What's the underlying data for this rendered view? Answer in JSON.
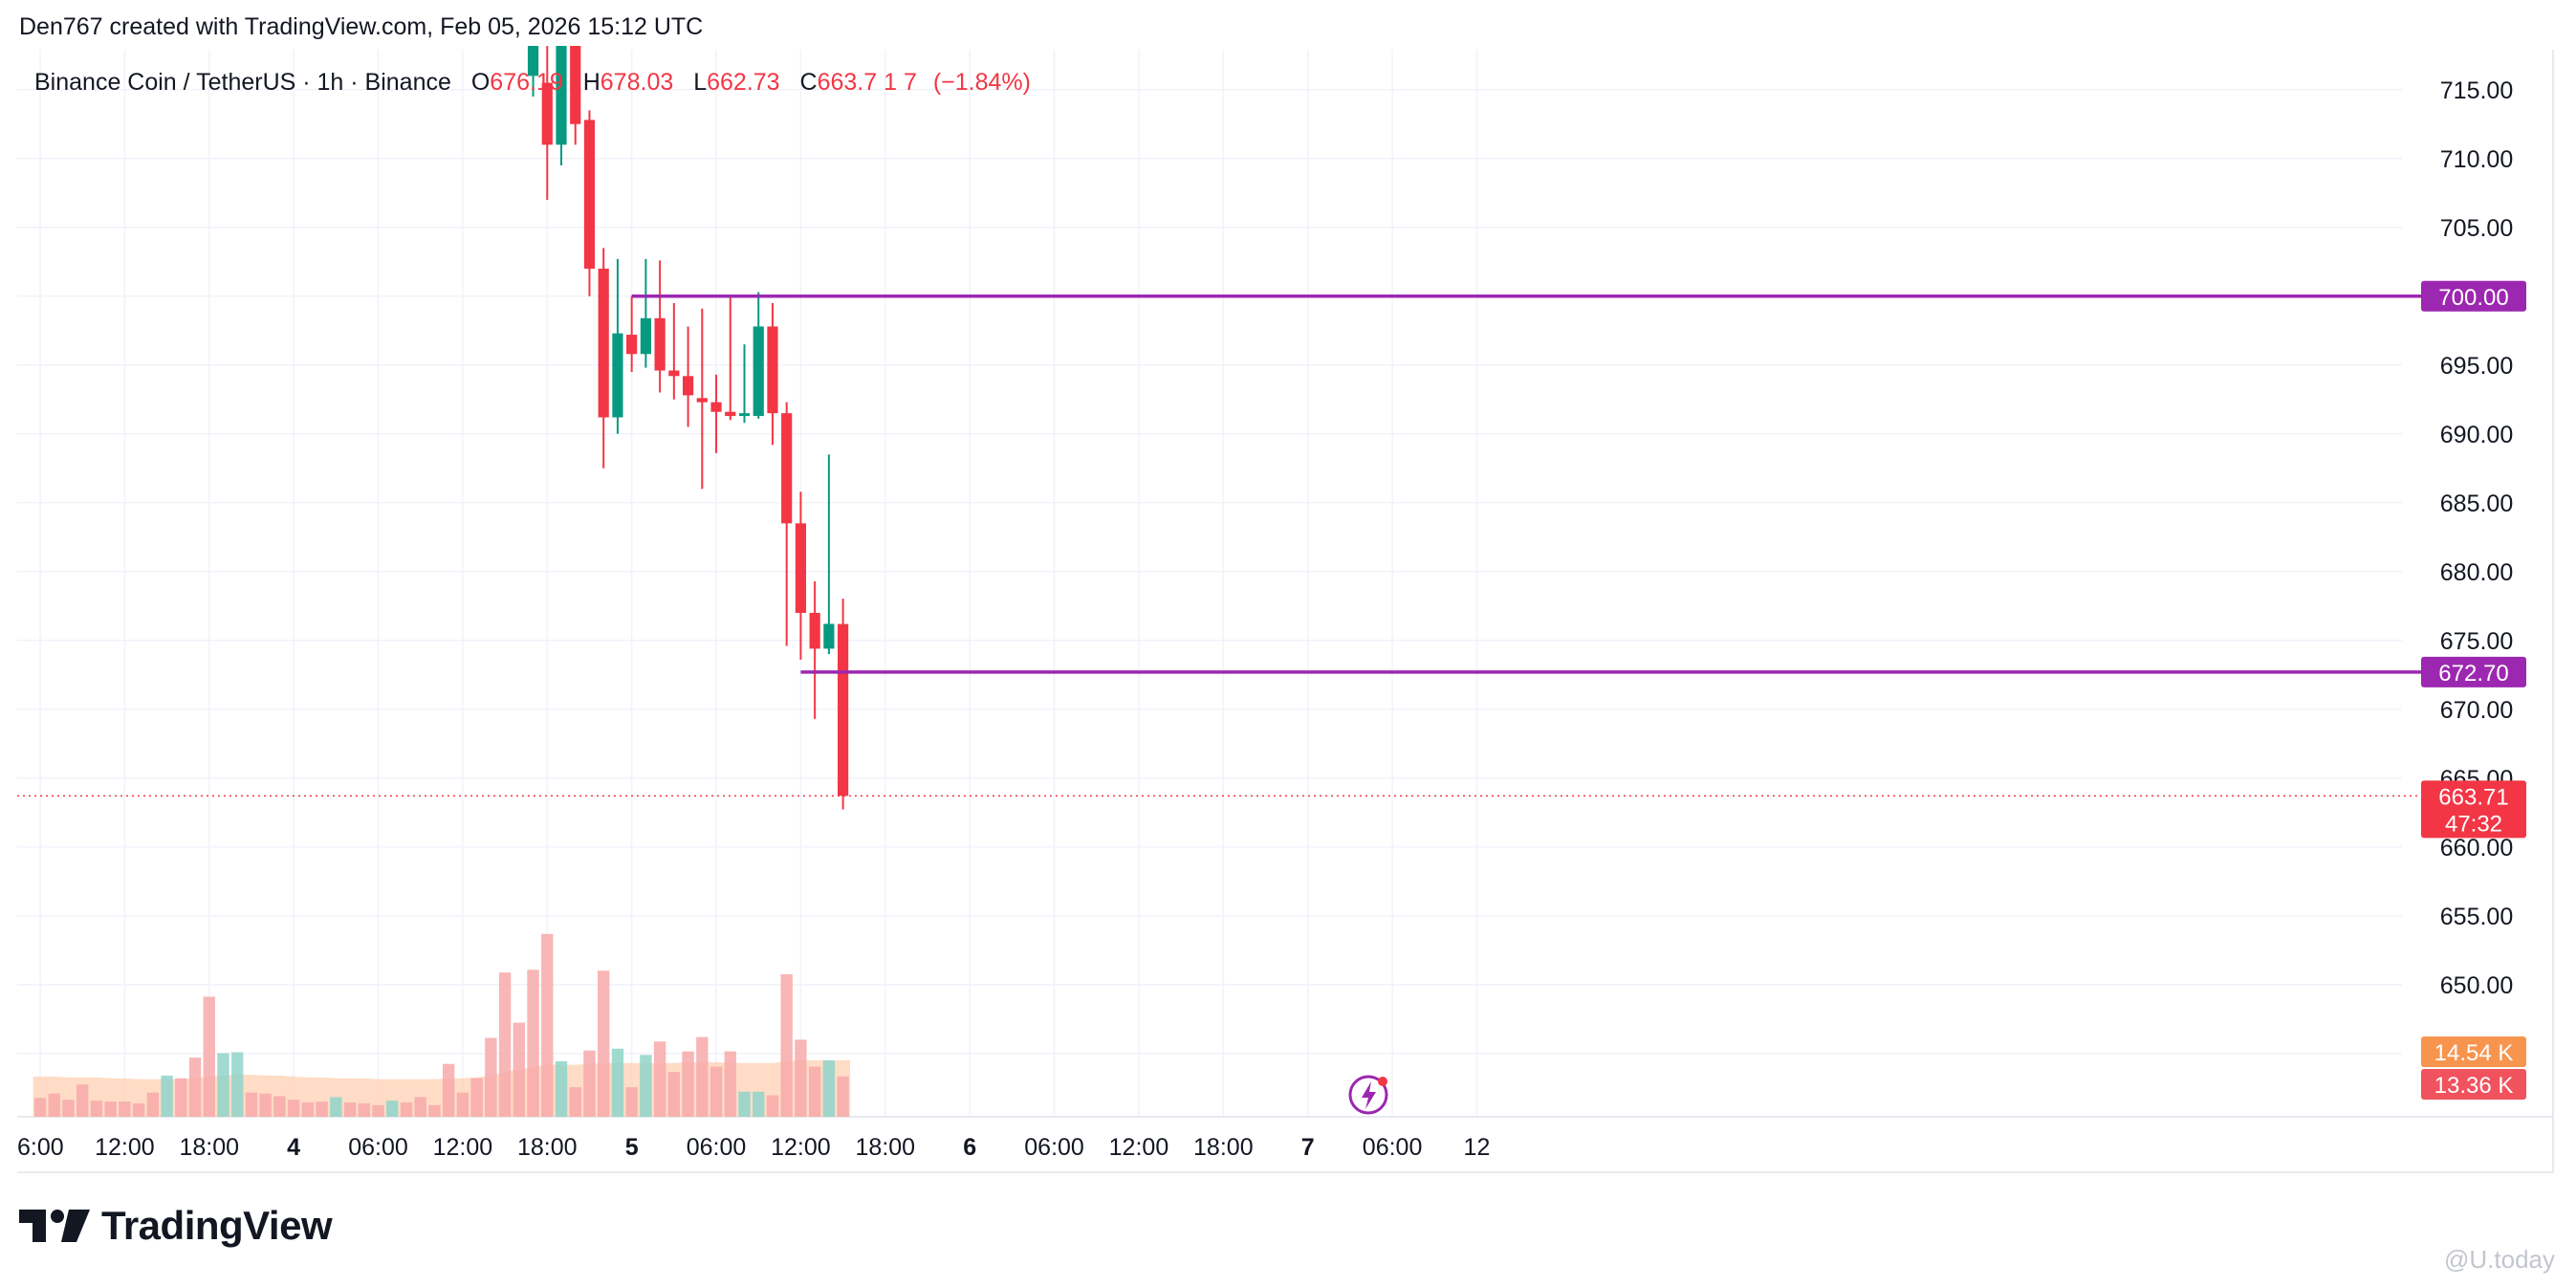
{
  "caption": "Den767 created with TradingView.com, Feb 05, 2026 15:12 UTC",
  "brand": {
    "name": "TradingView",
    "icon": "tradingview-logo-icon"
  },
  "watermark": "@U.today",
  "colors": {
    "up": "#089981",
    "down": "#f23645",
    "level": "#9c27b0",
    "vol_up": "#8fd3c9",
    "vol_down": "#f7a9a9",
    "vol_ma_fill": "#ffd0b3",
    "vol_ma_label": "#f7954f",
    "grid": "#f0f3fa"
  },
  "chart_data": {
    "type": "candlestick",
    "title": "Binance Coin / TetherUS · 1h · Binance",
    "ohlc_header": {
      "O": "676.19",
      "H": "678.03",
      "L": "662.73",
      "C": "663.7",
      "change": "(−1.84%)"
    },
    "header_clipped": {
      "change_pre": "1",
      "change_mid": "7"
    },
    "y_axis": {
      "range": [
        640.4,
        717.9
      ],
      "ticks": [
        "715.00",
        "710.00",
        "705.00",
        "700.00",
        "695.00",
        "690.00",
        "685.00",
        "680.00",
        "675.00",
        "670.00",
        "665.00",
        "660.00",
        "655.00",
        "650.00",
        "645.00"
      ]
    },
    "x_axis": {
      "ticks": [
        {
          "label": "6:00",
          "t": 0,
          "bold": false
        },
        {
          "label": "12:00",
          "t": 6,
          "bold": false
        },
        {
          "label": "18:00",
          "t": 12,
          "bold": false
        },
        {
          "label": "4",
          "t": 18,
          "bold": true
        },
        {
          "label": "06:00",
          "t": 24,
          "bold": false
        },
        {
          "label": "12:00",
          "t": 30,
          "bold": false
        },
        {
          "label": "18:00",
          "t": 36,
          "bold": false
        },
        {
          "label": "5",
          "t": 42,
          "bold": true
        },
        {
          "label": "06:00",
          "t": 48,
          "bold": false
        },
        {
          "label": "12:00",
          "t": 54,
          "bold": false
        },
        {
          "label": "18:00",
          "t": 60,
          "bold": false
        },
        {
          "label": "6",
          "t": 66,
          "bold": true
        },
        {
          "label": "06:00",
          "t": 72,
          "bold": false
        },
        {
          "label": "12:00",
          "t": 78,
          "bold": false
        },
        {
          "label": "18:00",
          "t": 84,
          "bold": false
        },
        {
          "label": "7",
          "t": 90,
          "bold": true
        },
        {
          "label": "06:00",
          "t": 96,
          "bold": false
        },
        {
          "label": "12",
          "t": 102,
          "bold": false
        }
      ]
    },
    "candles": [
      {
        "t": 35,
        "o": 716.0,
        "h": 720.0,
        "l": 714.5,
        "c": 720.0
      },
      {
        "t": 36,
        "o": 715.5,
        "h": 720.0,
        "l": 707.0,
        "c": 711.0
      },
      {
        "t": 37,
        "o": 711.0,
        "h": 720.0,
        "l": 709.5,
        "c": 720.0
      },
      {
        "t": 38,
        "o": 720.0,
        "h": 720.0,
        "l": 711.0,
        "c": 712.5
      },
      {
        "t": 39,
        "o": 712.8,
        "h": 713.5,
        "l": 700.0,
        "c": 702.0
      },
      {
        "t": 40,
        "o": 702.0,
        "h": 703.5,
        "l": 687.5,
        "c": 691.2
      },
      {
        "t": 41,
        "o": 691.2,
        "h": 702.7,
        "l": 690.0,
        "c": 697.3
      },
      {
        "t": 42,
        "o": 697.2,
        "h": 700.0,
        "l": 694.5,
        "c": 695.8
      },
      {
        "t": 43,
        "o": 695.8,
        "h": 702.7,
        "l": 694.8,
        "c": 698.4
      },
      {
        "t": 44,
        "o": 698.4,
        "h": 702.6,
        "l": 693.0,
        "c": 694.6
      },
      {
        "t": 45,
        "o": 694.6,
        "h": 699.5,
        "l": 692.5,
        "c": 694.2
      },
      {
        "t": 46,
        "o": 694.2,
        "h": 697.8,
        "l": 690.5,
        "c": 692.8
      },
      {
        "t": 47,
        "o": 692.6,
        "h": 699.1,
        "l": 686.0,
        "c": 692.3
      },
      {
        "t": 48,
        "o": 692.3,
        "h": 694.3,
        "l": 688.6,
        "c": 691.6
      },
      {
        "t": 49,
        "o": 691.6,
        "h": 700.0,
        "l": 691.0,
        "c": 691.3
      },
      {
        "t": 50,
        "o": 691.3,
        "h": 696.5,
        "l": 690.8,
        "c": 691.5
      },
      {
        "t": 51,
        "o": 691.3,
        "h": 700.3,
        "l": 691.1,
        "c": 697.8
      },
      {
        "t": 52,
        "o": 697.8,
        "h": 699.5,
        "l": 689.2,
        "c": 691.5
      },
      {
        "t": 53,
        "o": 691.5,
        "h": 692.3,
        "l": 674.6,
        "c": 683.5
      },
      {
        "t": 54,
        "o": 683.5,
        "h": 685.8,
        "l": 673.6,
        "c": 677.0
      },
      {
        "t": 55,
        "o": 677.0,
        "h": 679.3,
        "l": 669.3,
        "c": 674.4
      },
      {
        "t": 56,
        "o": 674.4,
        "h": 688.5,
        "l": 674.0,
        "c": 676.2
      },
      {
        "t": 57,
        "o": 676.19,
        "h": 678.03,
        "l": 662.73,
        "c": 663.71
      }
    ],
    "volume": [
      {
        "t": 0,
        "v": 2.1,
        "up": false
      },
      {
        "t": 1,
        "v": 2.6,
        "up": false
      },
      {
        "t": 2,
        "v": 1.9,
        "up": false
      },
      {
        "t": 3,
        "v": 3.6,
        "up": false
      },
      {
        "t": 4,
        "v": 1.8,
        "up": false
      },
      {
        "t": 5,
        "v": 1.7,
        "up": false
      },
      {
        "t": 6,
        "v": 1.7,
        "up": false
      },
      {
        "t": 7,
        "v": 1.5,
        "up": false
      },
      {
        "t": 8,
        "v": 2.7,
        "up": false
      },
      {
        "t": 9,
        "v": 4.6,
        "up": true
      },
      {
        "t": 10,
        "v": 4.3,
        "up": false
      },
      {
        "t": 11,
        "v": 6.6,
        "up": false
      },
      {
        "t": 12,
        "v": 13.4,
        "up": false
      },
      {
        "t": 13,
        "v": 7.1,
        "up": true
      },
      {
        "t": 14,
        "v": 7.2,
        "up": true
      },
      {
        "t": 15,
        "v": 2.7,
        "up": false
      },
      {
        "t": 16,
        "v": 2.6,
        "up": false
      },
      {
        "t": 17,
        "v": 2.3,
        "up": false
      },
      {
        "t": 18,
        "v": 1.9,
        "up": false
      },
      {
        "t": 19,
        "v": 1.6,
        "up": false
      },
      {
        "t": 20,
        "v": 1.7,
        "up": false
      },
      {
        "t": 21,
        "v": 2.2,
        "up": true
      },
      {
        "t": 22,
        "v": 1.6,
        "up": false
      },
      {
        "t": 23,
        "v": 1.5,
        "up": false
      },
      {
        "t": 24,
        "v": 1.3,
        "up": false
      },
      {
        "t": 25,
        "v": 1.8,
        "up": true
      },
      {
        "t": 26,
        "v": 1.6,
        "up": false
      },
      {
        "t": 27,
        "v": 2.2,
        "up": false
      },
      {
        "t": 28,
        "v": 1.3,
        "up": false
      },
      {
        "t": 29,
        "v": 5.9,
        "up": false
      },
      {
        "t": 30,
        "v": 2.7,
        "up": false
      },
      {
        "t": 31,
        "v": 4.3,
        "up": false
      },
      {
        "t": 32,
        "v": 8.8,
        "up": false
      },
      {
        "t": 33,
        "v": 16.1,
        "up": false
      },
      {
        "t": 34,
        "v": 10.5,
        "up": false
      },
      {
        "t": 35,
        "v": 16.4,
        "up": false
      },
      {
        "t": 36,
        "v": 20.4,
        "up": false
      },
      {
        "t": 37,
        "v": 6.2,
        "up": true
      },
      {
        "t": 38,
        "v": 3.3,
        "up": false
      },
      {
        "t": 39,
        "v": 7.4,
        "up": false
      },
      {
        "t": 40,
        "v": 16.3,
        "up": false
      },
      {
        "t": 41,
        "v": 7.6,
        "up": true
      },
      {
        "t": 42,
        "v": 3.3,
        "up": false
      },
      {
        "t": 43,
        "v": 6.9,
        "up": true
      },
      {
        "t": 44,
        "v": 8.4,
        "up": false
      },
      {
        "t": 45,
        "v": 5.0,
        "up": false
      },
      {
        "t": 46,
        "v": 7.3,
        "up": false
      },
      {
        "t": 47,
        "v": 8.9,
        "up": false
      },
      {
        "t": 48,
        "v": 5.6,
        "up": false
      },
      {
        "t": 49,
        "v": 7.3,
        "up": false
      },
      {
        "t": 50,
        "v": 2.8,
        "up": true
      },
      {
        "t": 51,
        "v": 2.8,
        "up": true
      },
      {
        "t": 52,
        "v": 2.4,
        "up": false
      },
      {
        "t": 53,
        "v": 15.9,
        "up": false
      },
      {
        "t": 54,
        "v": 8.6,
        "up": false
      },
      {
        "t": 55,
        "v": 5.6,
        "up": false
      },
      {
        "t": 56,
        "v": 6.3,
        "up": true
      },
      {
        "t": 57,
        "v": 4.5,
        "up": false
      }
    ],
    "volume_ma": [
      4.5,
      4.5,
      4.4,
      4.4,
      4.4,
      4.3,
      4.3,
      4.2,
      4.2,
      4.2,
      4.2,
      4.3,
      4.5,
      4.6,
      4.7,
      4.7,
      4.6,
      4.6,
      4.5,
      4.4,
      4.4,
      4.3,
      4.3,
      4.3,
      4.2,
      4.2,
      4.2,
      4.2,
      4.2,
      4.3,
      4.3,
      4.4,
      4.6,
      5.0,
      5.3,
      5.5,
      5.8,
      5.8,
      5.8,
      5.9,
      6.0,
      6.0,
      6.0,
      6.0,
      6.0,
      6.0,
      6.1,
      6.1,
      6.1,
      6.0,
      6.0,
      6.0,
      6.0,
      6.2,
      6.3,
      6.3,
      6.3,
      6.3
    ],
    "levels": [
      {
        "price": 700.0,
        "label": "700.00",
        "from_t": 42
      },
      {
        "price": 672.7,
        "label": "672.70",
        "from_t": 54
      }
    ],
    "last_price": {
      "price": 663.71,
      "label": "663.71",
      "countdown": "47:32"
    },
    "volume_labels": {
      "ma": "14.54 K",
      "last": "13.36 K"
    },
    "volume_max": 32.0
  }
}
